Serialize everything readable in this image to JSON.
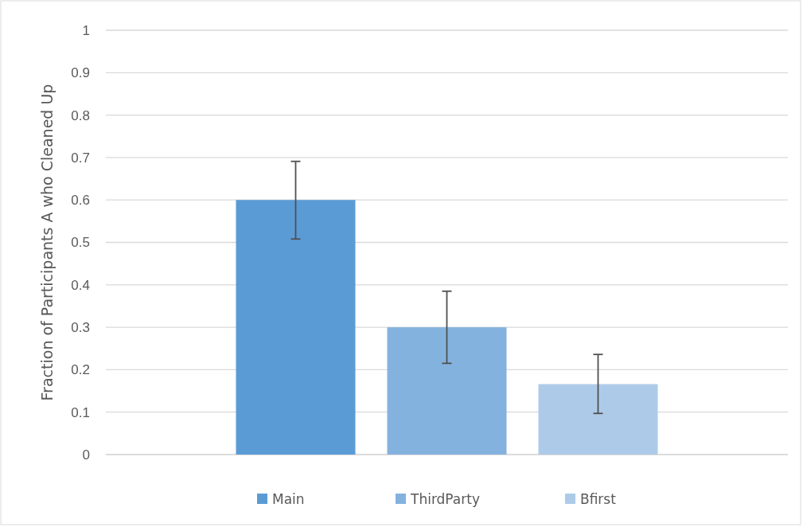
{
  "chart_data": {
    "type": "bar",
    "ylabel": "Fraction of Participants A who Cleaned Up",
    "categories": [
      null
    ],
    "series": [
      {
        "name": "Main",
        "color": "#5b9bd5",
        "values": [
          0.6
        ],
        "errors": [
          [
            0.508,
            0.691
          ]
        ]
      },
      {
        "name": "ThirdParty",
        "color": "#84b2de",
        "values": [
          0.3
        ],
        "errors": [
          [
            0.215,
            0.385
          ]
        ]
      },
      {
        "name": "Bfirst",
        "color": "#adcbe9",
        "values": [
          0.166
        ],
        "errors": [
          [
            0.097,
            0.236
          ]
        ]
      }
    ],
    "ylim": [
      0,
      1
    ],
    "yticks": [
      0,
      0.1,
      0.2,
      0.3,
      0.4,
      0.5,
      0.6,
      0.7,
      0.8,
      0.9,
      1
    ],
    "grid": "y",
    "legend": "bottom"
  }
}
